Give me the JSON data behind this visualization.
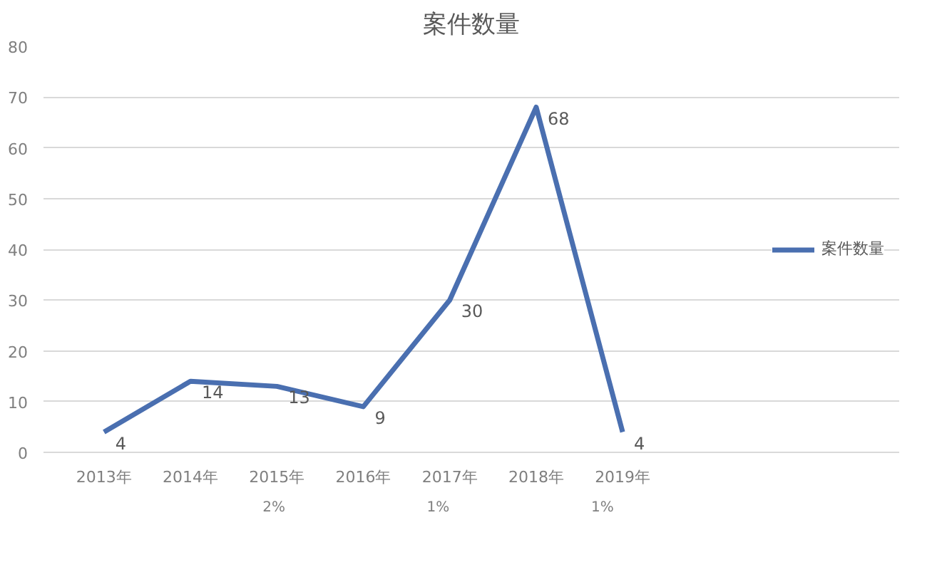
{
  "chart_data": {
    "type": "line",
    "title": "案件数量",
    "categories": [
      "2013年",
      "2014年",
      "2015年",
      "2016年",
      "2017年",
      "2018年",
      "2019年"
    ],
    "series": [
      {
        "name": "案件数量",
        "color": "#4a6fb0",
        "values": [
          4,
          14,
          13,
          9,
          30,
          68,
          4
        ]
      }
    ],
    "ylim": [
      0,
      80
    ],
    "yticks": [
      0,
      10,
      20,
      30,
      40,
      50,
      60,
      70,
      80
    ],
    "grid": "y",
    "legend": "right",
    "data_labels": true,
    "marker": "none",
    "line_style": "solid",
    "annotations": [
      "2%",
      "1%",
      "1%"
    ]
  }
}
